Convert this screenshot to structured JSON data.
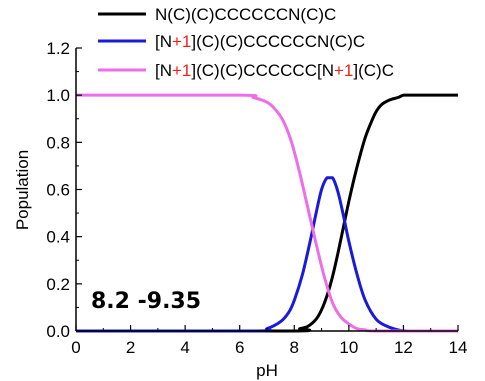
{
  "chart_data": {
    "type": "line",
    "xlabel": "pH",
    "ylabel": "Population",
    "xlim": [
      0,
      14
    ],
    "ylim": [
      0,
      1.2
    ],
    "xticks": [
      "0",
      "2",
      "4",
      "6",
      "8",
      "10",
      "12",
      "14"
    ],
    "yticks": [
      "0.0",
      "0.2",
      "0.4",
      "0.6",
      "0.8",
      "1.0",
      "1.2"
    ],
    "grid": false,
    "legend_position": "top",
    "annotation": "8.2 -9.35",
    "series": [
      {
        "name": "N(C)(C)CCCCCCN(C)C",
        "legend_parts": [
          {
            "text": "N(C)(C)CCCCCCN(C)C",
            "red": false
          }
        ],
        "color": "#000000",
        "x": [
          0,
          7.9,
          8.2,
          8.5,
          8.8,
          9.0,
          9.2,
          9.4,
          9.6,
          9.8,
          10.0,
          10.2,
          10.4,
          10.6,
          10.8,
          11.0,
          11.2,
          11.5,
          11.8,
          12.0,
          12.3,
          14
        ],
        "y": [
          0,
          0,
          0.01,
          0.02,
          0.05,
          0.09,
          0.15,
          0.23,
          0.33,
          0.44,
          0.55,
          0.65,
          0.74,
          0.82,
          0.88,
          0.93,
          0.96,
          0.98,
          0.99,
          1.0,
          1.0,
          1.0
        ]
      },
      {
        "name": "[N+1](C)(C)CCCCCCN(C)C",
        "legend_parts": [
          {
            "text": "[N",
            "red": false
          },
          {
            "text": "+1",
            "red": true
          },
          {
            "text": "](C)(C)CCCCCCN(C)C",
            "red": false
          }
        ],
        "color": "#1a1adb",
        "x": [
          0,
          6.5,
          7.0,
          7.5,
          7.8,
          8.0,
          8.3,
          8.6,
          8.8,
          9.0,
          9.2,
          9.4,
          9.6,
          9.8,
          10.0,
          10.3,
          10.6,
          11.0,
          11.4,
          11.8,
          12.2,
          14
        ],
        "y": [
          0,
          0,
          0.01,
          0.04,
          0.08,
          0.13,
          0.24,
          0.39,
          0.5,
          0.6,
          0.65,
          0.65,
          0.59,
          0.49,
          0.38,
          0.24,
          0.13,
          0.05,
          0.02,
          0.005,
          0,
          0
        ]
      },
      {
        "name": "[N+1](C)(C)CCCCCC[N+1](C)C",
        "legend_parts": [
          {
            "text": "[N",
            "red": false
          },
          {
            "text": "+1",
            "red": true
          },
          {
            "text": "](C)(C)CCCCCC[N",
            "red": false
          },
          {
            "text": "+1",
            "red": true
          },
          {
            "text": "](C)C",
            "red": false
          }
        ],
        "color": "#ee6ee8",
        "x": [
          0,
          6.0,
          6.5,
          7.0,
          7.3,
          7.6,
          7.9,
          8.2,
          8.5,
          8.8,
          9.1,
          9.4,
          9.7,
          10.0,
          10.3,
          10.6,
          11.0,
          14
        ],
        "y": [
          1.0,
          1.0,
          0.99,
          0.97,
          0.94,
          0.89,
          0.8,
          0.67,
          0.52,
          0.37,
          0.23,
          0.12,
          0.06,
          0.03,
          0.01,
          0.005,
          0,
          0
        ]
      }
    ]
  }
}
